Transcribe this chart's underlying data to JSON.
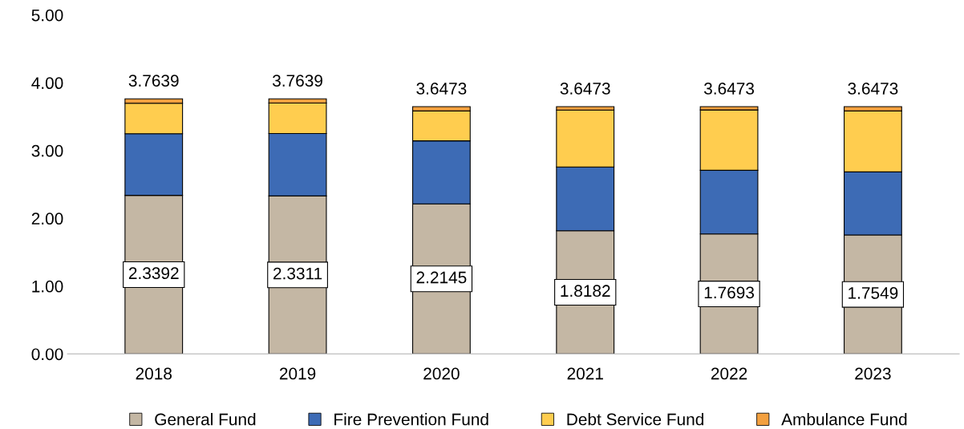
{
  "chart_data": {
    "type": "bar",
    "stacked": true,
    "categories": [
      "2018",
      "2019",
      "2020",
      "2021",
      "2022",
      "2023"
    ],
    "series": [
      {
        "name": "General Fund",
        "color": "#c4b7a4",
        "values": [
          2.3392,
          2.3311,
          2.2145,
          1.8182,
          1.7693,
          1.7549
        ],
        "value_labels": [
          "2.3392",
          "2.3311",
          "2.2145",
          "1.8182",
          "1.7693",
          "1.7549"
        ]
      },
      {
        "name": "Fire Prevention Fund",
        "color": "#3d6bb5",
        "values": [
          0.91,
          0.92,
          0.93,
          0.94,
          0.94,
          0.93
        ]
      },
      {
        "name": "Debt Service Fund",
        "color": "#ffcd4f",
        "values": [
          0.45,
          0.45,
          0.44,
          0.84,
          0.89,
          0.9
        ]
      },
      {
        "name": "Ambulance Fund",
        "color": "#f3a03f",
        "values": [
          0.0647,
          0.0628,
          0.0628,
          0.0491,
          0.048,
          0.0624
        ]
      }
    ],
    "totals": [
      "3.7639",
      "3.7639",
      "3.6473",
      "3.6473",
      "3.6473",
      "3.6473"
    ],
    "ylim": [
      0,
      5
    ],
    "yticks": [
      {
        "value": 0,
        "label": "0.00"
      },
      {
        "value": 1,
        "label": "1.00"
      },
      {
        "value": 2,
        "label": "2.00"
      },
      {
        "value": 3,
        "label": "3.00"
      },
      {
        "value": 4,
        "label": "4.00"
      },
      {
        "value": 5,
        "label": "5.00"
      }
    ],
    "grid": false,
    "legend": "bottom",
    "marker": "square"
  }
}
